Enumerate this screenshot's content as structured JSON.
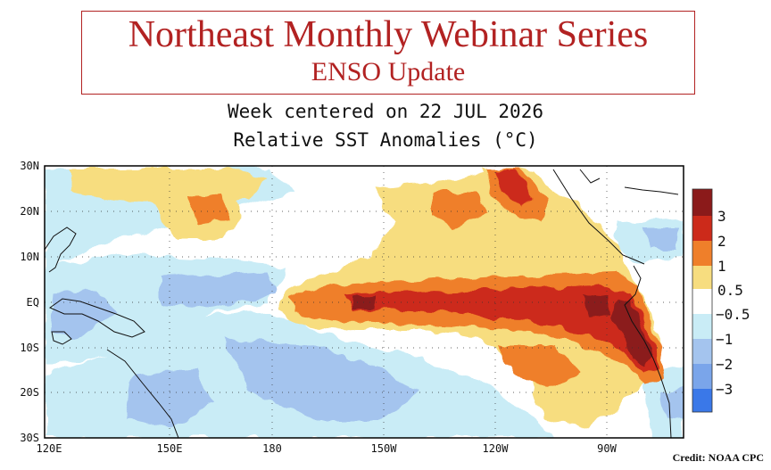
{
  "banner": {
    "title": "Northeast Monthly Webinar Series",
    "subtitle": "ENSO Update"
  },
  "map": {
    "heading_line1": "Week centered on 22 JUL 2026",
    "heading_line2": "Relative SST Anomalies (°C)",
    "lat_labels": [
      "30N",
      "20N",
      "10N",
      "EQ",
      "10S",
      "20S",
      "30S"
    ],
    "lon_labels": [
      "120E",
      "150E",
      "180",
      "150W",
      "120W",
      "90W"
    ],
    "colorbar_labels": [
      "3",
      "2",
      "1",
      "0.5",
      "−0.5",
      "−1",
      "−2",
      "−3"
    ],
    "colorbar_colors": [
      "#8b1a1a",
      "#cc2a1a",
      "#ef7f2a",
      "#f7dd7f",
      "#ffffff",
      "#c9ecf6",
      "#a4c4ee",
      "#7aa5ea",
      "#3a78e8"
    ],
    "credit": "Credit: NOAA CPC"
  }
}
